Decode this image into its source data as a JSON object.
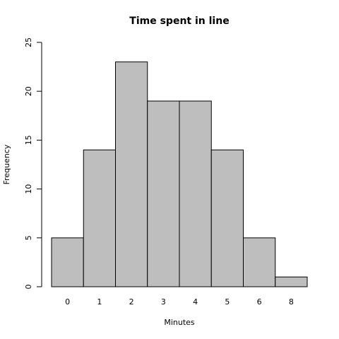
{
  "chart_data": {
    "type": "bar",
    "title": "Time spent in line",
    "x_label": "Minutes",
    "y_label": "Frequency",
    "categories": [
      "0",
      "1",
      "2",
      "3",
      "4",
      "5",
      "6",
      "8"
    ],
    "values": [
      5,
      14,
      23,
      19,
      19,
      14,
      5,
      1
    ],
    "color": "#bebebe",
    "ylim": [
      0,
      25
    ],
    "yticks": [
      0,
      5,
      10,
      15,
      20,
      25
    ]
  }
}
